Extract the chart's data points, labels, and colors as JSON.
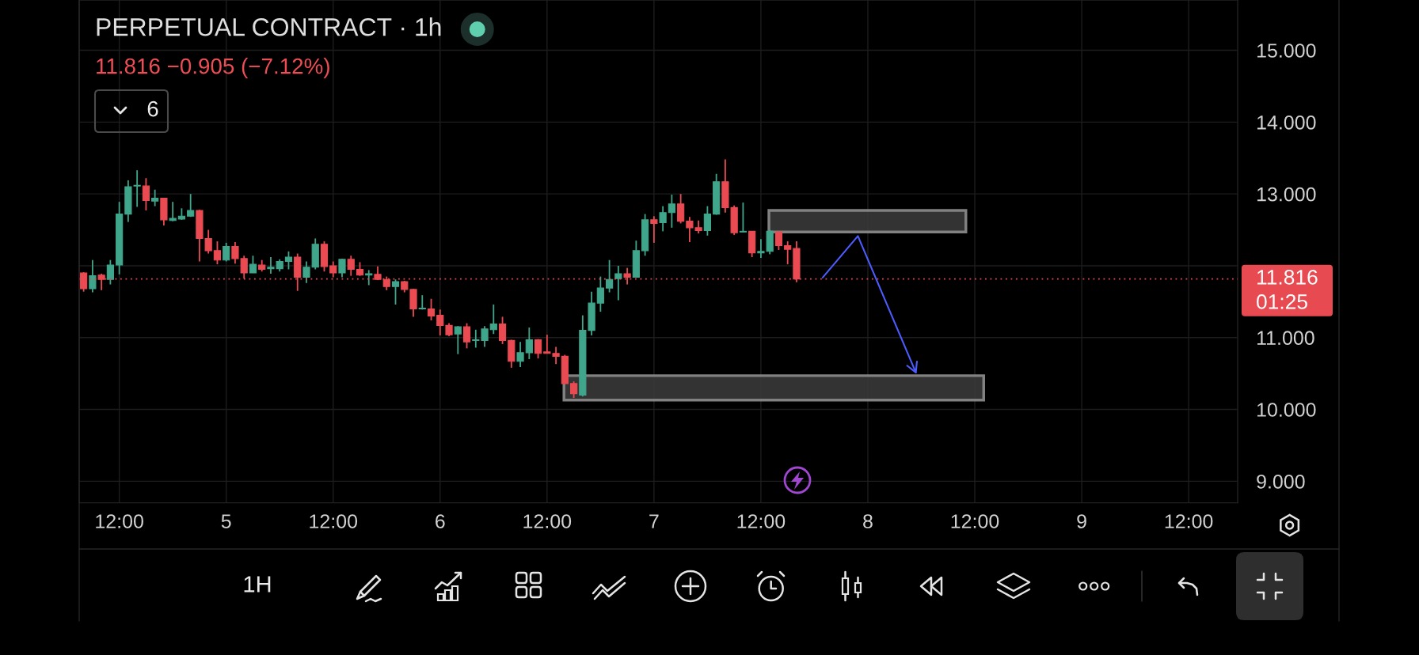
{
  "chart_data": {
    "type": "candlestick",
    "title": "PERPETUAL CONTRACT · 1h",
    "subtitle": "11.816 −0.905 (−7.12%)",
    "annotations": [
      "6",
      "01:25",
      "1H"
    ],
    "categories": [
      null,
      null,
      null,
      null,
      "12:00",
      null,
      null,
      null,
      null,
      null,
      null,
      null,
      null,
      null,
      null,
      null,
      "5",
      null,
      null,
      null,
      null,
      null,
      null,
      null,
      null,
      null,
      null,
      null,
      "12:00",
      null,
      null,
      null,
      null,
      null,
      null,
      null,
      null,
      null,
      null,
      null,
      "6",
      null,
      null,
      null,
      null,
      null,
      null,
      null,
      null,
      null,
      null,
      null,
      "12:00",
      null,
      null,
      null,
      null,
      null,
      null,
      null,
      null,
      null,
      null,
      null,
      "7",
      null,
      null,
      null,
      null,
      null,
      null,
      null,
      null,
      null,
      null,
      null,
      "12:00",
      null,
      null,
      null,
      null,
      null,
      null,
      null,
      null,
      null,
      null,
      null,
      "8",
      null,
      null,
      null,
      null,
      null,
      null,
      null,
      null,
      null,
      null,
      null,
      "12:00",
      null,
      null,
      null,
      null,
      null,
      null,
      null,
      null,
      null,
      null,
      null,
      "9",
      null,
      null,
      null,
      null,
      null,
      null,
      null,
      null,
      null,
      null,
      null,
      "12:00",
      null,
      null,
      null,
      null,
      null
    ],
    "ohlc": [
      [
        11.9,
        11.91,
        11.64,
        11.68
      ],
      [
        11.68,
        12.08,
        11.63,
        11.86
      ],
      [
        11.87,
        11.89,
        11.66,
        11.81
      ],
      [
        11.81,
        12.08,
        11.74,
        12.01
      ],
      [
        12.01,
        12.89,
        11.88,
        12.72
      ],
      [
        12.72,
        13.19,
        12.61,
        13.1
      ],
      [
        13.11,
        13.33,
        12.82,
        13.12
      ],
      [
        13.11,
        13.22,
        12.77,
        12.91
      ],
      [
        12.9,
        13.06,
        12.83,
        12.94
      ],
      [
        12.94,
        12.94,
        12.56,
        12.64
      ],
      [
        12.63,
        12.89,
        12.62,
        12.66
      ],
      [
        12.65,
        12.8,
        12.64,
        12.69
      ],
      [
        12.69,
        13.0,
        12.68,
        12.77
      ],
      [
        12.77,
        12.78,
        12.06,
        12.38
      ],
      [
        12.38,
        12.5,
        12.17,
        12.21
      ],
      [
        12.21,
        12.34,
        12.02,
        12.08
      ],
      [
        12.08,
        12.32,
        12.06,
        12.27
      ],
      [
        12.27,
        12.33,
        12.03,
        12.1
      ],
      [
        12.1,
        12.14,
        11.82,
        11.9
      ],
      [
        11.9,
        12.14,
        11.9,
        12.02
      ],
      [
        12.01,
        12.08,
        11.92,
        11.95
      ],
      [
        11.96,
        12.12,
        11.89,
        11.98
      ],
      [
        11.96,
        12.09,
        11.92,
        12.06
      ],
      [
        12.06,
        12.2,
        11.95,
        12.12
      ],
      [
        12.12,
        12.17,
        11.65,
        11.84
      ],
      [
        11.84,
        12.06,
        11.76,
        11.98
      ],
      [
        11.98,
        12.38,
        11.95,
        12.3
      ],
      [
        12.3,
        12.34,
        11.92,
        11.99
      ],
      [
        12.0,
        12.06,
        11.84,
        11.9
      ],
      [
        11.9,
        12.1,
        11.84,
        12.09
      ],
      [
        12.09,
        12.14,
        11.86,
        11.95
      ],
      [
        11.95,
        12.05,
        11.86,
        11.87
      ],
      [
        11.87,
        11.94,
        11.73,
        11.89
      ],
      [
        11.88,
        11.99,
        11.8,
        11.81
      ],
      [
        11.81,
        11.85,
        11.66,
        11.71
      ],
      [
        11.71,
        11.81,
        11.46,
        11.78
      ],
      [
        11.78,
        11.79,
        11.63,
        11.67
      ],
      [
        11.67,
        11.68,
        11.29,
        11.4
      ],
      [
        11.4,
        11.59,
        11.39,
        11.41
      ],
      [
        11.4,
        11.54,
        11.24,
        11.3
      ],
      [
        11.31,
        11.39,
        11.03,
        11.17
      ],
      [
        11.17,
        11.2,
        11.02,
        11.04
      ],
      [
        11.05,
        11.16,
        10.77,
        11.15
      ],
      [
        11.15,
        11.2,
        10.85,
        10.94
      ],
      [
        10.96,
        11.11,
        10.86,
        10.97
      ],
      [
        10.96,
        11.16,
        10.87,
        11.12
      ],
      [
        11.11,
        11.46,
        11.05,
        11.19
      ],
      [
        11.19,
        11.29,
        10.91,
        10.96
      ],
      [
        10.96,
        10.97,
        10.58,
        10.67
      ],
      [
        10.67,
        10.94,
        10.59,
        10.79
      ],
      [
        10.79,
        11.14,
        10.7,
        10.97
      ],
      [
        10.97,
        10.98,
        10.71,
        10.78
      ],
      [
        10.8,
        11.04,
        10.78,
        10.78
      ],
      [
        10.78,
        10.87,
        10.63,
        10.74
      ],
      [
        10.74,
        10.76,
        10.35,
        10.36
      ],
      [
        10.36,
        10.39,
        10.16,
        10.22
      ],
      [
        10.2,
        11.31,
        10.18,
        11.1
      ],
      [
        11.1,
        11.64,
        11.03,
        11.48
      ],
      [
        11.48,
        11.85,
        11.36,
        11.69
      ],
      [
        11.69,
        12.08,
        11.63,
        11.81
      ],
      [
        11.82,
        12.0,
        11.52,
        11.89
      ],
      [
        11.89,
        11.97,
        11.74,
        11.84
      ],
      [
        11.84,
        12.35,
        11.84,
        12.21
      ],
      [
        12.21,
        12.72,
        12.14,
        12.64
      ],
      [
        12.64,
        12.69,
        12.32,
        12.59
      ],
      [
        12.6,
        12.83,
        12.48,
        12.74
      ],
      [
        12.74,
        12.99,
        12.53,
        12.86
      ],
      [
        12.86,
        13.0,
        12.59,
        12.62
      ],
      [
        12.62,
        12.68,
        12.33,
        12.53
      ],
      [
        12.53,
        12.63,
        12.45,
        12.49
      ],
      [
        12.49,
        12.83,
        12.42,
        12.72
      ],
      [
        12.72,
        13.28,
        12.71,
        13.17
      ],
      [
        13.17,
        13.48,
        12.74,
        12.81
      ],
      [
        12.81,
        12.84,
        12.43,
        12.46
      ],
      [
        12.47,
        12.88,
        12.47,
        12.48
      ],
      [
        12.48,
        12.48,
        12.12,
        12.18
      ],
      [
        12.18,
        12.37,
        12.11,
        12.2
      ],
      [
        12.2,
        12.5,
        12.16,
        12.48
      ],
      [
        12.47,
        12.48,
        12.22,
        12.28
      ],
      [
        12.28,
        12.34,
        12.02,
        12.23
      ],
      [
        12.24,
        12.34,
        11.77,
        11.816
      ],
      null,
      null,
      null,
      null,
      null,
      null,
      null,
      null,
      null,
      null,
      null,
      null,
      null,
      null,
      null,
      null,
      null,
      null,
      null,
      null,
      null,
      null,
      null,
      null,
      null,
      null,
      null,
      null,
      null,
      null,
      null,
      null,
      null,
      null,
      null,
      null,
      null,
      null,
      null,
      null,
      null,
      null,
      null,
      null,
      null,
      null,
      null,
      null,
      null
    ],
    "colors": [
      "#ea4a51",
      "#3fa58b",
      "#ea4a51",
      "#3fa58b",
      "#3fa58b",
      "#3fa58b",
      "#3fa58b",
      "#ea4a51",
      "#3fa58b",
      "#ea4a51",
      "#3fa58b",
      "#3fa58b",
      "#3fa58b",
      "#ea4a51",
      "#ea4a51",
      "#ea4a51",
      "#3fa58b",
      "#ea4a51",
      "#ea4a51",
      "#3fa58b",
      "#ea4a51",
      "#3fa58b",
      "#3fa58b",
      "#3fa58b",
      "#ea4a51",
      "#3fa58b",
      "#3fa58b",
      "#ea4a51",
      "#ea4a51",
      "#3fa58b",
      "#ea4a51",
      "#ea4a51",
      "#3fa58b",
      "#ea4a51",
      "#ea4a51",
      "#3fa58b",
      "#ea4a51",
      "#ea4a51",
      "#3fa58b",
      "#ea4a51",
      "#ea4a51",
      "#ea4a51",
      "#3fa58b",
      "#ea4a51",
      "#3fa58b",
      "#3fa58b",
      "#3fa58b",
      "#ea4a51",
      "#ea4a51",
      "#3fa58b",
      "#3fa58b",
      "#ea4a51",
      "#ea4a51",
      "#ea4a51",
      "#ea4a51",
      "#ea4a51",
      "#3fa58b",
      "#3fa58b",
      "#3fa58b",
      "#3fa58b",
      "#3fa58b",
      "#ea4a51",
      "#3fa58b",
      "#3fa58b",
      "#ea4a51",
      "#3fa58b",
      "#3fa58b",
      "#ea4a51",
      "#ea4a51",
      "#ea4a51",
      "#3fa58b",
      "#3fa58b",
      "#ea4a51",
      "#ea4a51",
      "#3fa58b",
      "#ea4a51",
      "#3fa58b",
      "#3fa58b",
      "#ea4a51",
      "#ea4a51",
      "#ea4a51",
      null,
      null,
      null,
      null,
      null,
      null,
      null,
      null,
      null,
      null,
      null,
      null,
      null,
      null,
      null,
      null,
      null,
      null,
      null,
      null,
      null,
      null,
      null,
      null,
      null,
      null,
      null,
      null,
      null,
      null,
      null,
      null,
      null,
      null,
      null,
      null,
      null,
      null,
      null,
      null,
      null,
      null,
      null,
      null,
      null,
      null,
      null,
      null,
      null
    ],
    "ylim": [
      8.7,
      15.7
    ],
    "yticks": [
      {
        "value": 9,
        "label": "9.000"
      },
      {
        "value": 10,
        "label": "10.000"
      },
      {
        "value": 11,
        "label": "11.000"
      },
      {
        "value": 12,
        "label": null
      },
      {
        "value": 13,
        "label": "13.000"
      },
      {
        "value": 14,
        "label": "14.000"
      },
      {
        "value": 15,
        "label": "15.000"
      }
    ],
    "grid": true,
    "ref_lines": [
      {
        "axis": "y",
        "value": 11.816,
        "label": "11.816",
        "color": "#e84a51",
        "line_style": "dotted"
      }
    ]
  }
}
